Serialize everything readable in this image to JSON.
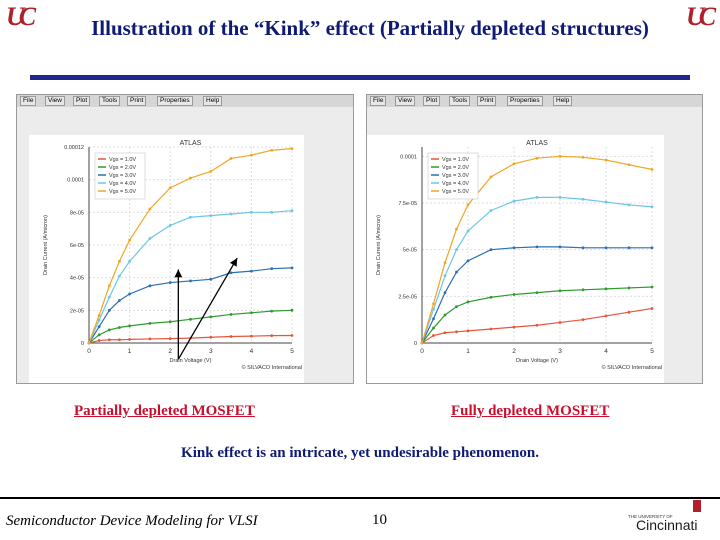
{
  "slide": {
    "title": "Illustration of the “Kink” effect (Partially depleted structures)",
    "logo_text": "UC",
    "footer_course": "Semiconductor Device Modeling for VLSI",
    "page_number": "10",
    "uc_small": "THE UNIVERSITY OF",
    "uc_word": "Cincinnati",
    "left_label": "Partially depleted MOSFET",
    "right_label": "Fully depleted MOSFET",
    "note": "Kink effect is an intricate, yet undesirable phenomenon."
  },
  "menus": [
    "File",
    "View",
    "Plot",
    "Tools",
    "Print",
    "Properties",
    "Help"
  ],
  "colors": {
    "title": "#0e1a73",
    "rule": "#20288f",
    "accent_red": "#c8102e",
    "series": [
      "#e8543c",
      "#2e9b2e",
      "#2c6fb0",
      "#6ec6e6",
      "#f0a626"
    ]
  },
  "chart_data": [
    {
      "type": "line",
      "title": "ATLAS",
      "xlabel": "Drain Voltage (V)",
      "ylabel": "Drain Current (A/micron)",
      "credit": "© SILVACO International",
      "xlim": [
        0,
        5
      ],
      "ylim": [
        0,
        0.00012
      ],
      "x_ticks": [
        0,
        1,
        2,
        3,
        4,
        5
      ],
      "x_tick_labels": [
        "0",
        "1",
        "2",
        "3",
        "4",
        "5"
      ],
      "y_ticks": [
        0,
        2e-05,
        4e-05,
        6e-05,
        8e-05,
        0.0001,
        0.00012
      ],
      "y_tick_labels": [
        "0",
        "2e-05",
        "4e-05",
        "6e-05",
        "8e-05",
        "0.0001",
        "0.00012"
      ],
      "legend_position": "top-left",
      "annotation": "arrows pointing to kink",
      "x": [
        0,
        0.25,
        0.5,
        0.75,
        1,
        1.5,
        2,
        2.5,
        3,
        3.5,
        4,
        4.5,
        5
      ],
      "series": [
        {
          "name": "Vgs = 1.0V",
          "values": [
            0,
            1.5e-06,
            2e-06,
            2e-06,
            2.2e-06,
            2.5e-06,
            2.7e-06,
            3e-06,
            3.5e-06,
            4e-06,
            4.2e-06,
            4.5e-06,
            4.6e-06
          ]
        },
        {
          "name": "Vgs = 2.0V",
          "values": [
            0,
            5e-06,
            8e-06,
            9.5e-06,
            1.05e-05,
            1.2e-05,
            1.3e-05,
            1.45e-05,
            1.6e-05,
            1.75e-05,
            1.85e-05,
            1.95e-05,
            2e-05
          ]
        },
        {
          "name": "Vgs = 3.0V",
          "values": [
            0,
            1e-05,
            2e-05,
            2.6e-05,
            3e-05,
            3.5e-05,
            3.7e-05,
            3.8e-05,
            3.9e-05,
            4.3e-05,
            4.4e-05,
            4.55e-05,
            4.6e-05
          ]
        },
        {
          "name": "Vgs = 4.0V",
          "values": [
            0,
            1.4e-05,
            2.8e-05,
            4.1e-05,
            5e-05,
            6.4e-05,
            7.2e-05,
            7.7e-05,
            7.8e-05,
            7.9e-05,
            8e-05,
            8e-05,
            8.1e-05
          ]
        },
        {
          "name": "Vgs = 5.0V",
          "values": [
            0,
            1.7e-05,
            3.5e-05,
            5e-05,
            6.3e-05,
            8.2e-05,
            9.5e-05,
            0.000101,
            0.000105,
            0.000113,
            0.000115,
            0.000118,
            0.000119
          ]
        }
      ]
    },
    {
      "type": "line",
      "title": "ATLAS",
      "xlabel": "Drain Voltage (V)",
      "ylabel": "Drain Current (A/micron)",
      "credit": "© SILVACO International",
      "xlim": [
        0,
        5
      ],
      "ylim": [
        0,
        0.000105
      ],
      "x_ticks": [
        0,
        1,
        2,
        3,
        4,
        5
      ],
      "x_tick_labels": [
        "0",
        "1",
        "2",
        "3",
        "4",
        "5"
      ],
      "y_ticks": [
        0,
        2.5e-05,
        5e-05,
        7.5e-05,
        0.0001
      ],
      "y_tick_labels": [
        "0",
        "2.5e-05",
        "5e-05",
        "7.5e-05",
        "0.0001"
      ],
      "legend_position": "top-left",
      "x": [
        0,
        0.25,
        0.5,
        0.75,
        1,
        1.5,
        2,
        2.5,
        3,
        3.5,
        4,
        4.5,
        5
      ],
      "series": [
        {
          "name": "Vgs = 1.0V",
          "values": [
            0,
            4e-06,
            5.5e-06,
            6e-06,
            6.5e-06,
            7.5e-06,
            8.5e-06,
            9.5e-06,
            1.1e-05,
            1.25e-05,
            1.45e-05,
            1.65e-05,
            1.85e-05
          ]
        },
        {
          "name": "Vgs = 2.0V",
          "values": [
            0,
            8e-06,
            1.5e-05,
            1.95e-05,
            2.2e-05,
            2.45e-05,
            2.6e-05,
            2.7e-05,
            2.8e-05,
            2.85e-05,
            2.9e-05,
            2.95e-05,
            3e-05
          ]
        },
        {
          "name": "Vgs = 3.0V",
          "values": [
            0,
            1.3e-05,
            2.7e-05,
            3.8e-05,
            4.4e-05,
            5e-05,
            5.1e-05,
            5.15e-05,
            5.15e-05,
            5.1e-05,
            5.1e-05,
            5.1e-05,
            5.1e-05
          ]
        },
        {
          "name": "Vgs = 4.0V",
          "values": [
            0,
            1.8e-05,
            3.6e-05,
            5e-05,
            6e-05,
            7.1e-05,
            7.6e-05,
            7.8e-05,
            7.8e-05,
            7.7e-05,
            7.55e-05,
            7.4e-05,
            7.3e-05
          ]
        },
        {
          "name": "Vgs = 5.0V",
          "values": [
            0,
            2.1e-05,
            4.3e-05,
            6.1e-05,
            7.4e-05,
            8.9e-05,
            9.6e-05,
            9.9e-05,
            0.0001,
            9.95e-05,
            9.8e-05,
            9.55e-05,
            9.3e-05
          ]
        }
      ]
    }
  ]
}
